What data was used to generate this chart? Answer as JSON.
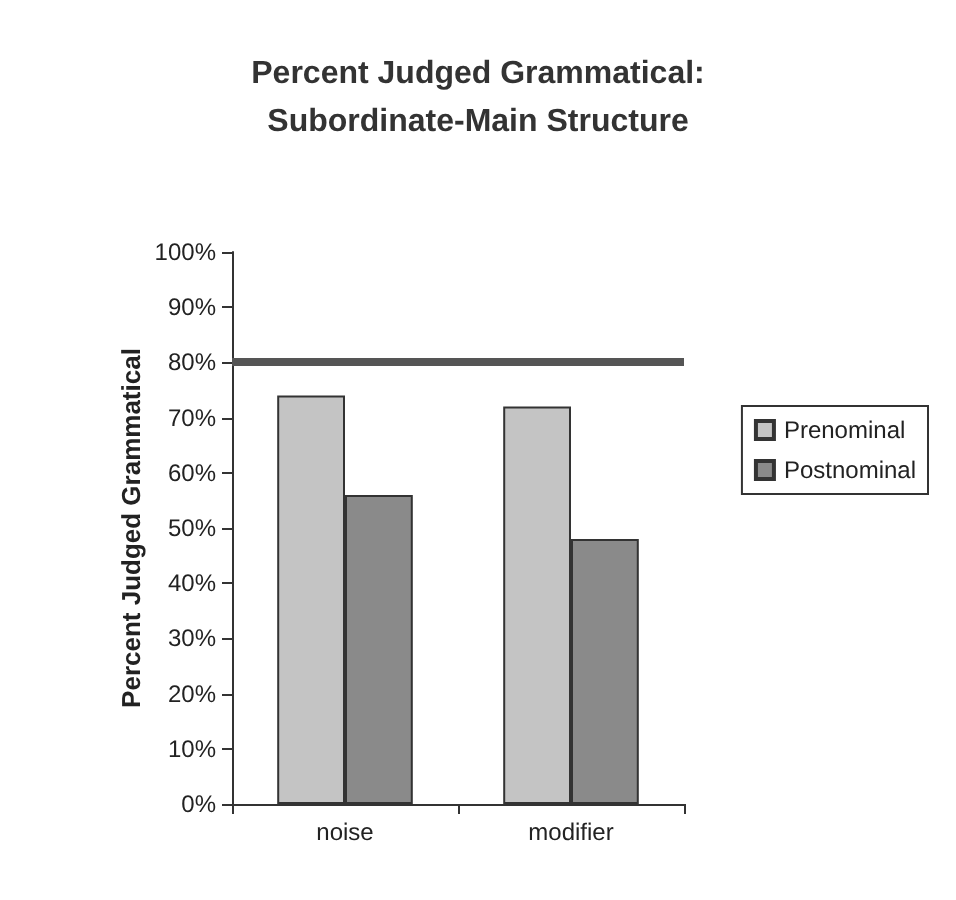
{
  "chart_data": {
    "type": "bar",
    "title": "Percent Judged Grammatical:\nSubordinate-Main Structure",
    "ylabel": "Percent Judged Grammatical",
    "categories": [
      "noise",
      "modifier"
    ],
    "series": [
      {
        "name": "Prenominal",
        "color": "#c4c4c4",
        "values": [
          74,
          72
        ]
      },
      {
        "name": "Postnominal",
        "color": "#8a8a8a",
        "values": [
          56,
          48
        ]
      }
    ],
    "ylim": [
      0,
      100
    ],
    "yticks": [
      {
        "value": 0,
        "label": "0%"
      },
      {
        "value": 10,
        "label": "10%"
      },
      {
        "value": 20,
        "label": "20%"
      },
      {
        "value": 30,
        "label": "30%"
      },
      {
        "value": 40,
        "label": "40%"
      },
      {
        "value": 50,
        "label": "50%"
      },
      {
        "value": 60,
        "label": "60%"
      },
      {
        "value": 70,
        "label": "70%"
      },
      {
        "value": 80,
        "label": "80%"
      },
      {
        "value": 90,
        "label": "90%"
      },
      {
        "value": 100,
        "label": "100%"
      }
    ],
    "ref_lines": [
      {
        "axis": "y",
        "value": 80,
        "color": "#555555"
      }
    ],
    "grid": false,
    "legend": "right"
  }
}
